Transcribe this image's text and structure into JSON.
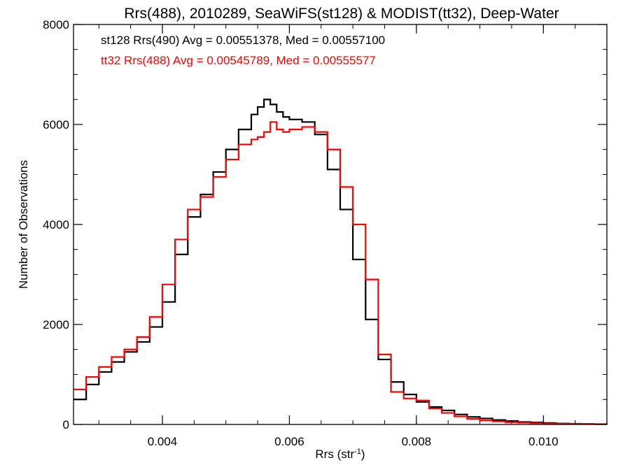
{
  "chart_data": {
    "type": "line",
    "title": "Rrs(488), 2010289, SeaWiFS(st128) & MODIST(tt32), Deep-Water",
    "xlabel": "Rrs (str",
    "xlabel_sup": "-1",
    "xlabel_close": ")",
    "ylabel": "Number of Observations",
    "xlim": [
      0.0026,
      0.011
    ],
    "ylim": [
      0,
      8000
    ],
    "x_ticks": [
      0.004,
      0.006,
      0.008,
      0.01
    ],
    "x_tick_labels": [
      "0.004",
      "0.006",
      "0.008",
      "0.010"
    ],
    "x_minor_step": 0.0005,
    "y_ticks": [
      0,
      2000,
      4000,
      6000,
      8000
    ],
    "y_tick_labels": [
      "0",
      "2000",
      "4000",
      "6000",
      "8000"
    ],
    "y_minor_step": 500,
    "grid": false,
    "legend_position": "top-left",
    "series": [
      {
        "name": "st128 Rrs(490) Avg = 0.00551378, Med = 0.00557100",
        "color": "#000000",
        "step": "histogram",
        "x": [
          0.0026,
          0.0028,
          0.003,
          0.0032,
          0.0034,
          0.0036,
          0.0038,
          0.004,
          0.0042,
          0.0044,
          0.0046,
          0.0048,
          0.005,
          0.0052,
          0.0054,
          0.0055,
          0.0056,
          0.0057,
          0.0058,
          0.0059,
          0.006,
          0.0062,
          0.0064,
          0.0066,
          0.0068,
          0.007,
          0.0072,
          0.0074,
          0.0076,
          0.0078,
          0.008,
          0.0082,
          0.0084,
          0.0086,
          0.0088,
          0.009,
          0.0092,
          0.0094,
          0.0096,
          0.0098,
          0.01,
          0.0102,
          0.0104,
          0.0106,
          0.0108,
          0.011
        ],
        "y": [
          500,
          800,
          1050,
          1250,
          1450,
          1650,
          1950,
          2450,
          3400,
          4150,
          4600,
          5050,
          5500,
          5900,
          6200,
          6350,
          6500,
          6400,
          6250,
          6150,
          6100,
          6050,
          5800,
          5100,
          4300,
          3300,
          2100,
          1300,
          850,
          600,
          450,
          350,
          280,
          200,
          150,
          120,
          90,
          70,
          50,
          40,
          30,
          20,
          15,
          10,
          8,
          5
        ]
      },
      {
        "name": "tt32 Rrs(488) Avg = 0.00545789, Med = 0.00555577",
        "color": "#ff0000",
        "step": "histogram",
        "x": [
          0.0026,
          0.0028,
          0.003,
          0.0032,
          0.0034,
          0.0036,
          0.0038,
          0.004,
          0.0042,
          0.0044,
          0.0046,
          0.0048,
          0.005,
          0.0052,
          0.0054,
          0.0055,
          0.0056,
          0.0057,
          0.0058,
          0.0059,
          0.006,
          0.0062,
          0.0064,
          0.0066,
          0.0068,
          0.007,
          0.0072,
          0.0074,
          0.0076,
          0.0078,
          0.008,
          0.0082,
          0.0084,
          0.0086,
          0.0088,
          0.009,
          0.0092,
          0.0094,
          0.0096,
          0.0098,
          0.01,
          0.0102,
          0.0104,
          0.0106,
          0.0108,
          0.011
        ],
        "y": [
          700,
          950,
          1150,
          1350,
          1500,
          1750,
          2150,
          2800,
          3700,
          4300,
          4550,
          4950,
          5300,
          5600,
          5700,
          5750,
          5850,
          6050,
          5900,
          5850,
          5900,
          5950,
          5850,
          5500,
          4750,
          4000,
          2900,
          1400,
          650,
          520,
          480,
          320,
          230,
          160,
          110,
          80,
          60,
          45,
          35,
          25,
          20,
          15,
          10,
          8,
          5,
          3
        ]
      }
    ]
  }
}
